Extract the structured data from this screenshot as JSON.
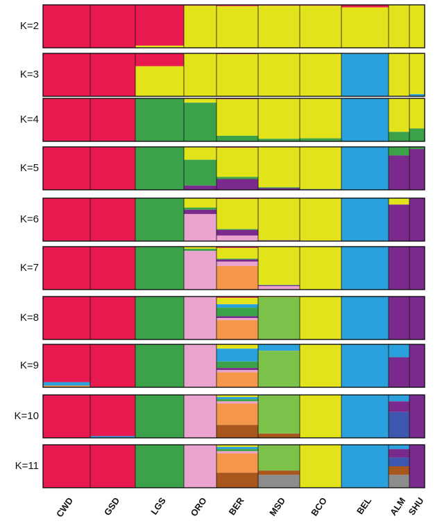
{
  "chart_data": {
    "type": "stacked-bar",
    "title": "",
    "populations": [
      "CWD",
      "GSD",
      "LGS",
      "ORO",
      "BER",
      "MSD",
      "BCO",
      "BEL",
      "ALM",
      "SHU"
    ],
    "panels": [
      {
        "label": "K=2",
        "proportions": [
          [
            1,
            0
          ],
          [
            1,
            0
          ],
          [
            0.95,
            0.05
          ],
          [
            0.02,
            0.98
          ],
          [
            0.03,
            0.97
          ],
          [
            0.02,
            0.98
          ],
          [
            0.02,
            0.98
          ],
          [
            0.06,
            0.94
          ],
          [
            0.01,
            0.99
          ],
          [
            0.01,
            0.99
          ]
        ]
      },
      {
        "label": "K=3",
        "proportions": [
          [
            1,
            0,
            0
          ],
          [
            1,
            0,
            0
          ],
          [
            0.3,
            0.7,
            0
          ],
          [
            0.01,
            0.99,
            0
          ],
          [
            0.02,
            0.98,
            0
          ],
          [
            0.01,
            0.99,
            0
          ],
          [
            0.01,
            0.99,
            0
          ],
          [
            0,
            0.01,
            0.99
          ],
          [
            0,
            0.99,
            0.01
          ],
          [
            0,
            0.95,
            0.05
          ]
        ]
      },
      {
        "label": "K=4",
        "proportions": [
          [
            1,
            0,
            0,
            0
          ],
          [
            1,
            0,
            0,
            0
          ],
          [
            0,
            0,
            0,
            1
          ],
          [
            0,
            0.1,
            0,
            0.9
          ],
          [
            0.02,
            0.85,
            0,
            0.13
          ],
          [
            0.01,
            0.93,
            0,
            0.06
          ],
          [
            0.01,
            0.92,
            0,
            0.07
          ],
          [
            0,
            0,
            1,
            0
          ],
          [
            0,
            0.78,
            0,
            0.22
          ],
          [
            0,
            0.7,
            0,
            0.3
          ]
        ]
      },
      {
        "label": "K=5",
        "proportions": [
          [
            1,
            0,
            0,
            0,
            0
          ],
          [
            1,
            0,
            0,
            0,
            0
          ],
          [
            0,
            0,
            0,
            1,
            0
          ],
          [
            0,
            0.3,
            0,
            0.6,
            0.1
          ],
          [
            0.02,
            0.68,
            0,
            0.05,
            0.25
          ],
          [
            0.01,
            0.93,
            0,
            0.02,
            0.04
          ],
          [
            0.01,
            0.97,
            0,
            0.01,
            0.01
          ],
          [
            0,
            0,
            1,
            0,
            0
          ],
          [
            0,
            0,
            0,
            0.2,
            0.8
          ],
          [
            0,
            0,
            0,
            0.05,
            0.95
          ]
        ]
      },
      {
        "label": "K=6",
        "proportions": [
          [
            1,
            0,
            0,
            0,
            0,
            0
          ],
          [
            1,
            0,
            0,
            0,
            0,
            0
          ],
          [
            0,
            0,
            0,
            1,
            0,
            0
          ],
          [
            0,
            0.22,
            0,
            0.05,
            0.1,
            0.63
          ],
          [
            0.02,
            0.7,
            0,
            0.02,
            0.13,
            0.13
          ],
          [
            0.01,
            0.97,
            0,
            0,
            0.01,
            0.01
          ],
          [
            0,
            0.99,
            0,
            0,
            0,
            0.01
          ],
          [
            0,
            0,
            1,
            0,
            0,
            0
          ],
          [
            0,
            0.15,
            0,
            0,
            0.85,
            0
          ],
          [
            0,
            0,
            0,
            0,
            1,
            0
          ]
        ]
      },
      {
        "label": "K=7",
        "proportions": [
          [
            1,
            0,
            0,
            0,
            0,
            0,
            0
          ],
          [
            1,
            0,
            0,
            0,
            0,
            0,
            0
          ],
          [
            0,
            0,
            0,
            1,
            0,
            0,
            0
          ],
          [
            0,
            0.05,
            0,
            0.05,
            0,
            0.9,
            0
          ],
          [
            0.03,
            0.25,
            0,
            0.02,
            0.05,
            0.1,
            0.55
          ],
          [
            0.01,
            0.88,
            0,
            0.01,
            0.02,
            0.08,
            0
          ],
          [
            0,
            1,
            0,
            0,
            0,
            0,
            0
          ],
          [
            0,
            0,
            1,
            0,
            0,
            0,
            0
          ],
          [
            0,
            0,
            0,
            0,
            1,
            0,
            0
          ],
          [
            0,
            0,
            0,
            0,
            1,
            0,
            0
          ]
        ]
      },
      {
        "label": "K=8",
        "proportions": [
          [
            1,
            0,
            0,
            0,
            0,
            0,
            0,
            0
          ],
          [
            1,
            0,
            0,
            0,
            0,
            0,
            0,
            0
          ],
          [
            0,
            0,
            0,
            1,
            0,
            0,
            0,
            0
          ],
          [
            0,
            0,
            0,
            0,
            0,
            1,
            0,
            0
          ],
          [
            0.03,
            0.15,
            0.08,
            0.2,
            0.04,
            0.05,
            0.45,
            0
          ],
          [
            0,
            0.02,
            0,
            0,
            0,
            0,
            0,
            0.98
          ],
          [
            0,
            1,
            0,
            0,
            0,
            0,
            0,
            0
          ],
          [
            0,
            0,
            1,
            0,
            0,
            0,
            0,
            0
          ],
          [
            0,
            0,
            0,
            0,
            1,
            0,
            0,
            0
          ],
          [
            0,
            0,
            0,
            0,
            1,
            0,
            0,
            0
          ]
        ]
      },
      {
        "label": "K=9",
        "proportions": [
          [
            0.88,
            0,
            0.08,
            0,
            0,
            0,
            0.04,
            0,
            0
          ],
          [
            1,
            0,
            0,
            0,
            0,
            0,
            0,
            0,
            0
          ],
          [
            0,
            0,
            0,
            1,
            0,
            0,
            0,
            0,
            0
          ],
          [
            0,
            0,
            0,
            0,
            0,
            1,
            0,
            0,
            0
          ],
          [
            0,
            0.1,
            0.3,
            0.15,
            0.05,
            0.05,
            0.35,
            0,
            0
          ],
          [
            0,
            0,
            0.15,
            0,
            0,
            0,
            0,
            0.85,
            0
          ],
          [
            0,
            1,
            0,
            0,
            0,
            0,
            0,
            0,
            0
          ],
          [
            0,
            0,
            1,
            0,
            0,
            0,
            0,
            0,
            0
          ],
          [
            0,
            0,
            0.3,
            0,
            0.7,
            0,
            0,
            0,
            0
          ],
          [
            0,
            0,
            0,
            0,
            1,
            0,
            0,
            0,
            0
          ]
        ]
      },
      {
        "label": "K=10",
        "proportions": [
          [
            1,
            0,
            0,
            0,
            0,
            0,
            0,
            0,
            0,
            0
          ],
          [
            0.96,
            0,
            0.04,
            0,
            0,
            0,
            0,
            0,
            0,
            0
          ],
          [
            0,
            0,
            0,
            1,
            0,
            0,
            0,
            0,
            0,
            0
          ],
          [
            0,
            0,
            0,
            0,
            0,
            1,
            0,
            0,
            0,
            0
          ],
          [
            0,
            0.05,
            0.05,
            0.05,
            0,
            0.05,
            0.5,
            0,
            0,
            0.3
          ],
          [
            0,
            0,
            0,
            0,
            0,
            0,
            0,
            0.9,
            0,
            0.1
          ],
          [
            0,
            1,
            0,
            0,
            0,
            0,
            0,
            0,
            0,
            0
          ],
          [
            0,
            0,
            1,
            0,
            0,
            0,
            0,
            0,
            0,
            0
          ],
          [
            0,
            0,
            0.15,
            0,
            0.25,
            0,
            0,
            0,
            0.6,
            0
          ],
          [
            0,
            0,
            0,
            0,
            1,
            0,
            0,
            0,
            0,
            0
          ]
        ]
      },
      {
        "label": "K=11",
        "proportions": [
          [
            1,
            0,
            0,
            0,
            0,
            0,
            0,
            0,
            0,
            0,
            0
          ],
          [
            1,
            0,
            0,
            0,
            0,
            0,
            0,
            0,
            0,
            0,
            0
          ],
          [
            0,
            0,
            0,
            1,
            0,
            0,
            0,
            0,
            0,
            0,
            0
          ],
          [
            0,
            0,
            0,
            0,
            0,
            1,
            0,
            0,
            0,
            0,
            0
          ],
          [
            0,
            0.05,
            0.05,
            0.05,
            0,
            0.05,
            0.45,
            0,
            0,
            0.35,
            0
          ],
          [
            0,
            0,
            0,
            0,
            0,
            0,
            0,
            0.6,
            0,
            0.1,
            0.3
          ],
          [
            0,
            1,
            0,
            0,
            0,
            0,
            0,
            0,
            0,
            0,
            0
          ],
          [
            0,
            0,
            1,
            0,
            0,
            0,
            0,
            0,
            0,
            0,
            0
          ],
          [
            0,
            0,
            0.1,
            0,
            0.2,
            0,
            0,
            0,
            0.2,
            0.2,
            0.3
          ],
          [
            0,
            0,
            0,
            0,
            1,
            0,
            0,
            0,
            0,
            0,
            0
          ]
        ]
      }
    ],
    "cluster_colors": [
      "#e8194f",
      "#e2e31b",
      "#2aa0dc",
      "#3ba24a",
      "#7a2a8c",
      "#eaa3cc",
      "#f4974a",
      "#7cc24a",
      "#3d56b0",
      "#a8561c",
      "#8c8c8c"
    ],
    "grid": false,
    "legend": "none"
  }
}
